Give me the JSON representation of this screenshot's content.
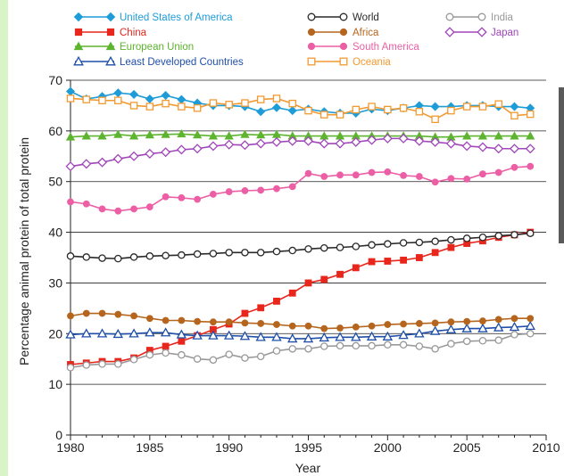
{
  "chart_data": {
    "type": "line",
    "title": "",
    "xlabel": "Year",
    "ylabel": "Percentage animal protein of total protein",
    "xlim": [
      1980,
      2010
    ],
    "ylim": [
      0,
      70
    ],
    "xticks": [
      "1980",
      "1985",
      "1990",
      "1995",
      "2000",
      "2005",
      "2010"
    ],
    "yticks": [
      "0",
      "10",
      "20",
      "30",
      "40",
      "50",
      "60",
      "70"
    ],
    "grid": "horizontal",
    "legend_position": "top",
    "x": [
      1980,
      1981,
      1982,
      1983,
      1984,
      1985,
      1986,
      1987,
      1988,
      1989,
      1990,
      1991,
      1992,
      1993,
      1994,
      1995,
      1996,
      1997,
      1998,
      1999,
      2000,
      2001,
      2002,
      2003,
      2004,
      2005,
      2006,
      2007,
      2008,
      2009
    ],
    "series": [
      {
        "name": "United States of America",
        "color": "#1e9cd8",
        "marker": "diamond-filled",
        "values": [
          67.8,
          66.3,
          66.8,
          67.5,
          67.2,
          66.3,
          67.0,
          66.2,
          65.5,
          65.0,
          65.0,
          64.8,
          63.8,
          64.6,
          64.0,
          64.3,
          63.8,
          63.5,
          63.5,
          64.3,
          64.0,
          64.5,
          65.0,
          64.8,
          64.8,
          65.0,
          65.0,
          64.8,
          64.8,
          64.5
        ]
      },
      {
        "name": "China",
        "color": "#e8261c",
        "marker": "square-filled",
        "values": [
          13.9,
          14.2,
          14.5,
          14.5,
          15.2,
          16.7,
          17.5,
          18.5,
          19.6,
          20.8,
          21.9,
          24.0,
          25.1,
          26.4,
          28.0,
          30.0,
          30.7,
          31.7,
          33.0,
          34.2,
          34.3,
          34.5,
          35.0,
          36.0,
          37.0,
          37.8,
          38.3,
          39.0,
          39.5,
          40.0
        ]
      },
      {
        "name": "European Union",
        "color": "#5db42e",
        "marker": "triangle-filled",
        "values": [
          58.8,
          59.0,
          59.0,
          59.3,
          59.0,
          59.2,
          59.3,
          59.4,
          59.2,
          59.0,
          59.0,
          59.3,
          59.2,
          59.3,
          59.0,
          59.0,
          59.0,
          59.0,
          59.0,
          59.0,
          59.0,
          59.0,
          59.0,
          58.8,
          58.8,
          59.0,
          59.0,
          59.0,
          59.0,
          59.0
        ]
      },
      {
        "name": "Least Developed Countries",
        "color": "#1f4fa8",
        "marker": "triangle-open",
        "values": [
          19.8,
          20.0,
          20.0,
          19.9,
          20.0,
          20.2,
          20.2,
          19.8,
          19.6,
          19.6,
          19.6,
          19.5,
          19.3,
          19.3,
          19.0,
          19.0,
          19.2,
          19.3,
          19.3,
          19.4,
          19.4,
          19.7,
          20.0,
          20.5,
          20.8,
          21.0,
          21.0,
          21.2,
          21.3,
          21.5
        ]
      },
      {
        "name": "World",
        "color": "#2a2a2a",
        "marker": "circle-open",
        "values": [
          35.3,
          35.1,
          34.9,
          34.8,
          35.1,
          35.3,
          35.4,
          35.5,
          35.7,
          35.8,
          36.0,
          36.0,
          36.0,
          36.2,
          36.4,
          36.7,
          36.9,
          37.0,
          37.2,
          37.5,
          37.7,
          37.9,
          38.0,
          38.2,
          38.5,
          38.8,
          39.0,
          39.3,
          39.5,
          39.8
        ]
      },
      {
        "name": "Africa",
        "color": "#b5651d",
        "marker": "circle-filled",
        "values": [
          23.5,
          24.0,
          24.0,
          23.8,
          23.5,
          23.0,
          22.6,
          22.6,
          22.4,
          22.3,
          22.3,
          22.1,
          22.0,
          21.8,
          21.5,
          21.5,
          21.0,
          21.1,
          21.3,
          21.5,
          21.8,
          21.9,
          22.0,
          22.1,
          22.3,
          22.4,
          22.5,
          22.8,
          23.0,
          23.0
        ]
      },
      {
        "name": "South America",
        "color": "#ec5fa5",
        "marker": "circle-filled",
        "values": [
          46.0,
          45.6,
          44.6,
          44.2,
          44.6,
          45.0,
          47.0,
          46.8,
          46.5,
          47.5,
          48.0,
          48.2,
          48.3,
          48.6,
          49.0,
          51.6,
          51.0,
          51.3,
          51.3,
          51.8,
          51.9,
          51.2,
          51.0,
          49.9,
          50.6,
          50.5,
          51.5,
          51.8,
          52.8,
          53.0
        ]
      },
      {
        "name": "Oceania",
        "color": "#f29a32",
        "marker": "square-open",
        "values": [
          66.4,
          66.2,
          66.0,
          66.0,
          65.0,
          64.8,
          65.4,
          64.8,
          64.5,
          65.5,
          65.2,
          65.5,
          66.2,
          66.4,
          65.4,
          64.0,
          63.2,
          63.2,
          64.2,
          64.8,
          64.2,
          64.5,
          63.8,
          62.3,
          64.0,
          64.8,
          64.8,
          65.3,
          63.0,
          63.3
        ]
      },
      {
        "name": "India",
        "color": "#999999",
        "marker": "circle-open",
        "values": [
          13.3,
          13.8,
          14.0,
          14.0,
          14.9,
          15.8,
          16.2,
          15.8,
          15.0,
          14.8,
          15.9,
          15.2,
          15.5,
          16.6,
          17.0,
          17.0,
          17.5,
          17.6,
          17.6,
          17.6,
          17.8,
          17.8,
          17.5,
          17.0,
          18.0,
          18.5,
          18.6,
          18.7,
          19.8,
          20.0
        ]
      },
      {
        "name": "Japan",
        "color": "#a046b9",
        "marker": "diamond-open",
        "values": [
          53.0,
          53.5,
          53.8,
          54.5,
          55.0,
          55.5,
          55.8,
          56.3,
          56.5,
          57.0,
          57.3,
          57.2,
          57.5,
          57.8,
          58.0,
          58.0,
          57.5,
          57.5,
          57.8,
          58.2,
          58.5,
          58.5,
          58.0,
          57.8,
          57.5,
          57.0,
          56.8,
          56.5,
          56.5,
          56.5
        ]
      }
    ]
  }
}
